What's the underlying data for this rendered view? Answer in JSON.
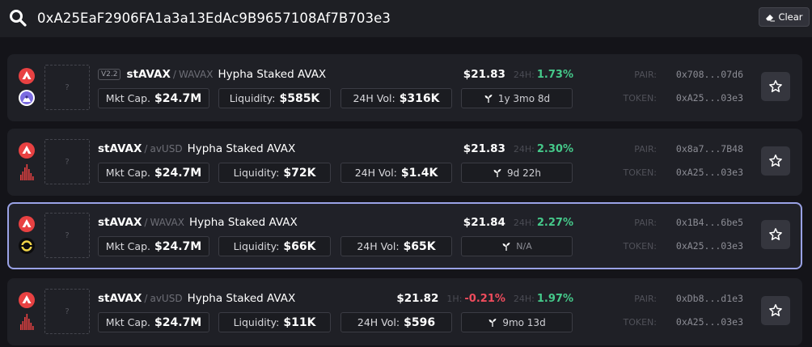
{
  "search": {
    "value": "0xA25EaF2906FA1a3a13EdAc9B9657108Af7B703e3",
    "clear_label": "Clear"
  },
  "colors": {
    "positive": "#45c98a",
    "negative": "#ef4c5d",
    "avalanche_red": "#e84142",
    "selected_border": "#9aa2e6"
  },
  "rows": [
    {
      "chain_icon": "avalanche-icon",
      "dex_icon": "pangolin-dex-icon",
      "thumb": "?",
      "version": "V2.2",
      "base": "stAVAX",
      "sep": "/",
      "quote": "WAVAX",
      "name": "Hypha Staked AVAX",
      "mcap_label": "Mkt Cap.",
      "mcap": "$24.7M",
      "liq_label": "Liquidity:",
      "liq": "$585K",
      "vol_label": "24H Vol:",
      "vol": "$316K",
      "age": "1y 3mo 8d",
      "price": "$21.83",
      "chg24_label": "24H:",
      "chg24": "1.73%",
      "pair_label": "PAIR:",
      "pair": "0x708...07d6",
      "token_label": "TOKEN:",
      "token": "0xA25...03e3"
    },
    {
      "chain_icon": "avalanche-icon",
      "dex_icon": "bar-chart-dex-icon",
      "thumb": "?",
      "base": "stAVAX",
      "sep": "/",
      "quote": "avUSD",
      "name": "Hypha Staked AVAX",
      "mcap_label": "Mkt Cap.",
      "mcap": "$24.7M",
      "liq_label": "Liquidity:",
      "liq": "$72K",
      "vol_label": "24H Vol:",
      "vol": "$1.4K",
      "age": "9d 22h",
      "price": "$21.83",
      "chg24_label": "24H:",
      "chg24": "2.30%",
      "pair_label": "PAIR:",
      "pair": "0x8a7...7B48",
      "token_label": "TOKEN:",
      "token": "0xA25...03e3"
    },
    {
      "chain_icon": "avalanche-icon",
      "dex_icon": "ring-dex-icon",
      "thumb": "?",
      "base": "stAVAX",
      "sep": "/",
      "quote": "WAVAX",
      "name": "Hypha Staked AVAX",
      "mcap_label": "Mkt Cap.",
      "mcap": "$24.7M",
      "liq_label": "Liquidity:",
      "liq": "$66K",
      "vol_label": "24H Vol:",
      "vol": "$65K",
      "age": "N/A",
      "price": "$21.84",
      "chg24_label": "24H:",
      "chg24": "2.27%",
      "pair_label": "PAIR:",
      "pair": "0x1B4...6be5",
      "token_label": "TOKEN:",
      "token": "0xA25...03e3"
    },
    {
      "chain_icon": "avalanche-icon",
      "dex_icon": "bar-chart-dex-icon",
      "thumb": "?",
      "base": "stAVAX",
      "sep": "/",
      "quote": "avUSD",
      "name": "Hypha Staked AVAX",
      "mcap_label": "Mkt Cap.",
      "mcap": "$24.7M",
      "liq_label": "Liquidity:",
      "liq": "$11K",
      "vol_label": "24H Vol:",
      "vol": "$596",
      "age": "9mo 13d",
      "price": "$21.82",
      "chg1_label": "1H:",
      "chg1": "-0.21%",
      "chg24_label": "24H:",
      "chg24": "1.97%",
      "pair_label": "PAIR:",
      "pair": "0xDb8...d1e3",
      "token_label": "TOKEN:",
      "token": "0xA25...03e3"
    }
  ]
}
